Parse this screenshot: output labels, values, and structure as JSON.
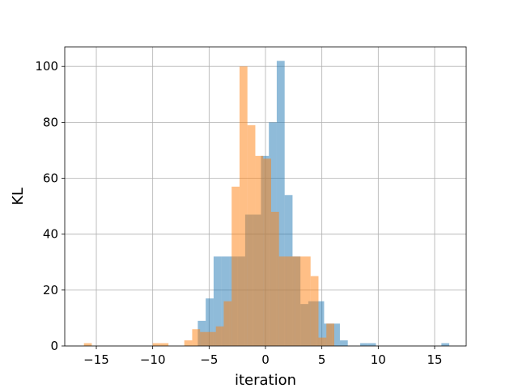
{
  "chart_data": {
    "type": "bar",
    "subtype": "histogram",
    "title": "",
    "xlabel": "iteration",
    "ylabel": "KL",
    "xlim": [
      -17.8,
      17.8
    ],
    "ylim": [
      0,
      107
    ],
    "xticks": [
      -15,
      -10,
      -5,
      0,
      5,
      10,
      15
    ],
    "yticks": [
      0,
      20,
      40,
      60,
      80,
      100
    ],
    "grid": true,
    "series": [
      {
        "color": "#1f77b4",
        "alpha": 0.5,
        "bin_width": 0.7,
        "bins": [
          {
            "x0": -6.0,
            "count": 9
          },
          {
            "x0": -5.3,
            "count": 17
          },
          {
            "x0": -4.6,
            "count": 32
          },
          {
            "x0": -3.9,
            "count": 32
          },
          {
            "x0": -3.2,
            "count": 32
          },
          {
            "x0": -2.5,
            "count": 32
          },
          {
            "x0": -1.8,
            "count": 47
          },
          {
            "x0": -1.1,
            "count": 47
          },
          {
            "x0": -0.4,
            "count": 68
          },
          {
            "x0": 0.3,
            "count": 80
          },
          {
            "x0": 1.0,
            "count": 102
          },
          {
            "x0": 1.7,
            "count": 54
          },
          {
            "x0": 2.4,
            "count": 32
          },
          {
            "x0": 3.1,
            "count": 15
          },
          {
            "x0": 3.8,
            "count": 16
          },
          {
            "x0": 4.5,
            "count": 16
          },
          {
            "x0": 5.2,
            "count": 8
          },
          {
            "x0": 5.9,
            "count": 8
          },
          {
            "x0": 6.6,
            "count": 2
          },
          {
            "x0": 8.4,
            "count": 1
          },
          {
            "x0": 9.1,
            "count": 1
          },
          {
            "x0": 15.6,
            "count": 1
          }
        ]
      },
      {
        "color": "#ff7f0e",
        "alpha": 0.5,
        "bin_width": 0.7,
        "bins": [
          {
            "x0": -16.1,
            "count": 1
          },
          {
            "x0": -10.0,
            "count": 1
          },
          {
            "x0": -9.3,
            "count": 1
          },
          {
            "x0": -7.2,
            "count": 2
          },
          {
            "x0": -6.5,
            "count": 6
          },
          {
            "x0": -5.8,
            "count": 5
          },
          {
            "x0": -5.1,
            "count": 5
          },
          {
            "x0": -4.4,
            "count": 7
          },
          {
            "x0": -3.7,
            "count": 16
          },
          {
            "x0": -3.0,
            "count": 57
          },
          {
            "x0": -2.3,
            "count": 100
          },
          {
            "x0": -1.6,
            "count": 79
          },
          {
            "x0": -0.9,
            "count": 68
          },
          {
            "x0": -0.2,
            "count": 67
          },
          {
            "x0": 0.5,
            "count": 48
          },
          {
            "x0": 1.2,
            "count": 32
          },
          {
            "x0": 1.9,
            "count": 32
          },
          {
            "x0": 2.6,
            "count": 32
          },
          {
            "x0": 3.3,
            "count": 32
          },
          {
            "x0": 4.0,
            "count": 25
          },
          {
            "x0": 4.7,
            "count": 3
          },
          {
            "x0": 5.4,
            "count": 8
          }
        ]
      }
    ]
  }
}
